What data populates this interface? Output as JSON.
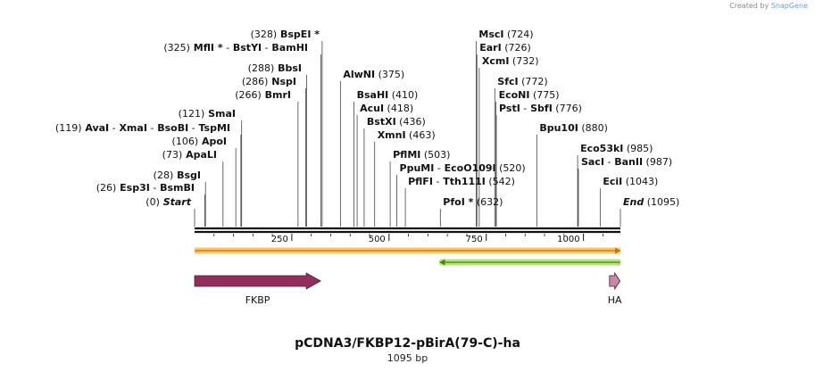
{
  "header": {
    "created_by": "Created by",
    "brand": "SnapGene"
  },
  "plasmid": {
    "name": "pCDNA3/FKBP12-pBirA(79-C)-ha",
    "size_label": "1095 bp",
    "length": 1095
  },
  "ruler": {
    "ticks": [
      250,
      500,
      750,
      1000
    ]
  },
  "sites": [
    {
      "pos": 0,
      "segments": [
        {
          "t": "(0)"
        },
        {
          "t": "Start",
          "i": true
        }
      ]
    },
    {
      "pos": 26,
      "segments": [
        {
          "t": "(26)"
        },
        {
          "t": "Esp3I",
          "b": true
        },
        {
          "t": "-"
        },
        {
          "t": "BsmBI",
          "b": true
        }
      ]
    },
    {
      "pos": 28,
      "segments": [
        {
          "t": "(28)"
        },
        {
          "t": "BsgI",
          "b": true
        }
      ]
    },
    {
      "pos": 73,
      "segments": [
        {
          "t": "(73)"
        },
        {
          "t": "ApaLI",
          "b": true
        }
      ]
    },
    {
      "pos": 106,
      "segments": [
        {
          "t": "(106)"
        },
        {
          "t": "ApoI",
          "b": true
        }
      ]
    },
    {
      "pos": 119,
      "segments": [
        {
          "t": "(119)"
        },
        {
          "t": "AvaI",
          "b": true
        },
        {
          "t": "-"
        },
        {
          "t": "XmaI",
          "b": true
        },
        {
          "t": "-"
        },
        {
          "t": "BsoBI",
          "b": true
        },
        {
          "t": "-"
        },
        {
          "t": "TspMI",
          "b": true
        }
      ]
    },
    {
      "pos": 121,
      "segments": [
        {
          "t": "(121)"
        },
        {
          "t": "SmaI",
          "b": true
        }
      ]
    },
    {
      "pos": 266,
      "segments": [
        {
          "t": "(266)"
        },
        {
          "t": "BmrI",
          "b": true
        }
      ]
    },
    {
      "pos": 286,
      "segments": [
        {
          "t": "(286)"
        },
        {
          "t": "NspI",
          "b": true
        }
      ]
    },
    {
      "pos": 288,
      "segments": [
        {
          "t": "(288)"
        },
        {
          "t": "BbsI",
          "b": true
        }
      ]
    },
    {
      "pos": 325,
      "segments": [
        {
          "t": "(325)"
        },
        {
          "t": "MflI *",
          "b": true
        },
        {
          "t": "-"
        },
        {
          "t": "BstYI",
          "b": true
        },
        {
          "t": "-"
        },
        {
          "t": "BamHI",
          "b": true
        }
      ]
    },
    {
      "pos": 328,
      "segments": [
        {
          "t": "(328)"
        },
        {
          "t": "BspEI *",
          "b": true
        }
      ]
    },
    {
      "pos": 375,
      "segments": [
        {
          "t": "AlwNI",
          "b": true
        },
        {
          "t": "(375)"
        }
      ]
    },
    {
      "pos": 410,
      "segments": [
        {
          "t": "BsaHI",
          "b": true
        },
        {
          "t": "(410)"
        }
      ]
    },
    {
      "pos": 418,
      "segments": [
        {
          "t": "AcuI",
          "b": true
        },
        {
          "t": "(418)"
        }
      ]
    },
    {
      "pos": 436,
      "segments": [
        {
          "t": "BstXI",
          "b": true
        },
        {
          "t": "(436)"
        }
      ]
    },
    {
      "pos": 463,
      "segments": [
        {
          "t": "XmnI",
          "b": true
        },
        {
          "t": "(463)"
        }
      ]
    },
    {
      "pos": 503,
      "segments": [
        {
          "t": "PflMI",
          "b": true
        },
        {
          "t": "(503)"
        }
      ]
    },
    {
      "pos": 520,
      "segments": [
        {
          "t": "PpuMI",
          "b": true
        },
        {
          "t": "-"
        },
        {
          "t": "EcoO109I",
          "b": true
        },
        {
          "t": "(520)"
        }
      ]
    },
    {
      "pos": 542,
      "segments": [
        {
          "t": "PflFI",
          "b": true
        },
        {
          "t": "-"
        },
        {
          "t": "Tth111I",
          "b": true
        },
        {
          "t": "(542)"
        }
      ]
    },
    {
      "pos": 632,
      "segments": [
        {
          "t": "PfoI *",
          "b": true
        },
        {
          "t": "(632)"
        }
      ]
    },
    {
      "pos": 724,
      "segments": [
        {
          "t": "MscI",
          "b": true
        },
        {
          "t": "(724)"
        }
      ]
    },
    {
      "pos": 726,
      "segments": [
        {
          "t": "EarI",
          "b": true
        },
        {
          "t": "(726)"
        }
      ]
    },
    {
      "pos": 732,
      "segments": [
        {
          "t": "XcmI",
          "b": true
        },
        {
          "t": "(732)"
        }
      ]
    },
    {
      "pos": 772,
      "segments": [
        {
          "t": "SfcI",
          "b": true
        },
        {
          "t": "(772)"
        }
      ]
    },
    {
      "pos": 775,
      "segments": [
        {
          "t": "EcoNI",
          "b": true
        },
        {
          "t": "(775)"
        }
      ]
    },
    {
      "pos": 776,
      "segments": [
        {
          "t": "PstI",
          "b": true
        },
        {
          "t": "-"
        },
        {
          "t": "SbfI",
          "b": true
        },
        {
          "t": "(776)"
        }
      ]
    },
    {
      "pos": 880,
      "segments": [
        {
          "t": "Bpu10I",
          "b": true
        },
        {
          "t": "(880)"
        }
      ]
    },
    {
      "pos": 985,
      "segments": [
        {
          "t": "Eco53kI",
          "b": true
        },
        {
          "t": "(985)"
        }
      ]
    },
    {
      "pos": 987,
      "segments": [
        {
          "t": "SacI",
          "b": true
        },
        {
          "t": "-"
        },
        {
          "t": "BanII",
          "b": true
        },
        {
          "t": "(987)"
        }
      ]
    },
    {
      "pos": 1043,
      "segments": [
        {
          "t": "EciI",
          "b": true
        },
        {
          "t": "(1043)"
        }
      ]
    },
    {
      "pos": 1095,
      "segments": [
        {
          "t": "End",
          "i": true
        },
        {
          "t": "(1095)"
        }
      ]
    }
  ],
  "primers": [
    {
      "start": 0,
      "end": 1095,
      "direction": "forward",
      "fill": "#f9c56f",
      "line": "#c07800"
    },
    {
      "start": 630,
      "end": 1095,
      "direction": "reverse",
      "fill": "#b6e27a",
      "line": "#3b8a00"
    }
  ],
  "features": [
    {
      "name": "FKBP",
      "start": 0,
      "end": 324,
      "color": "#932e5c"
    },
    {
      "name": "HA",
      "start": 1067,
      "end": 1094,
      "color": "#c987a8"
    }
  ]
}
